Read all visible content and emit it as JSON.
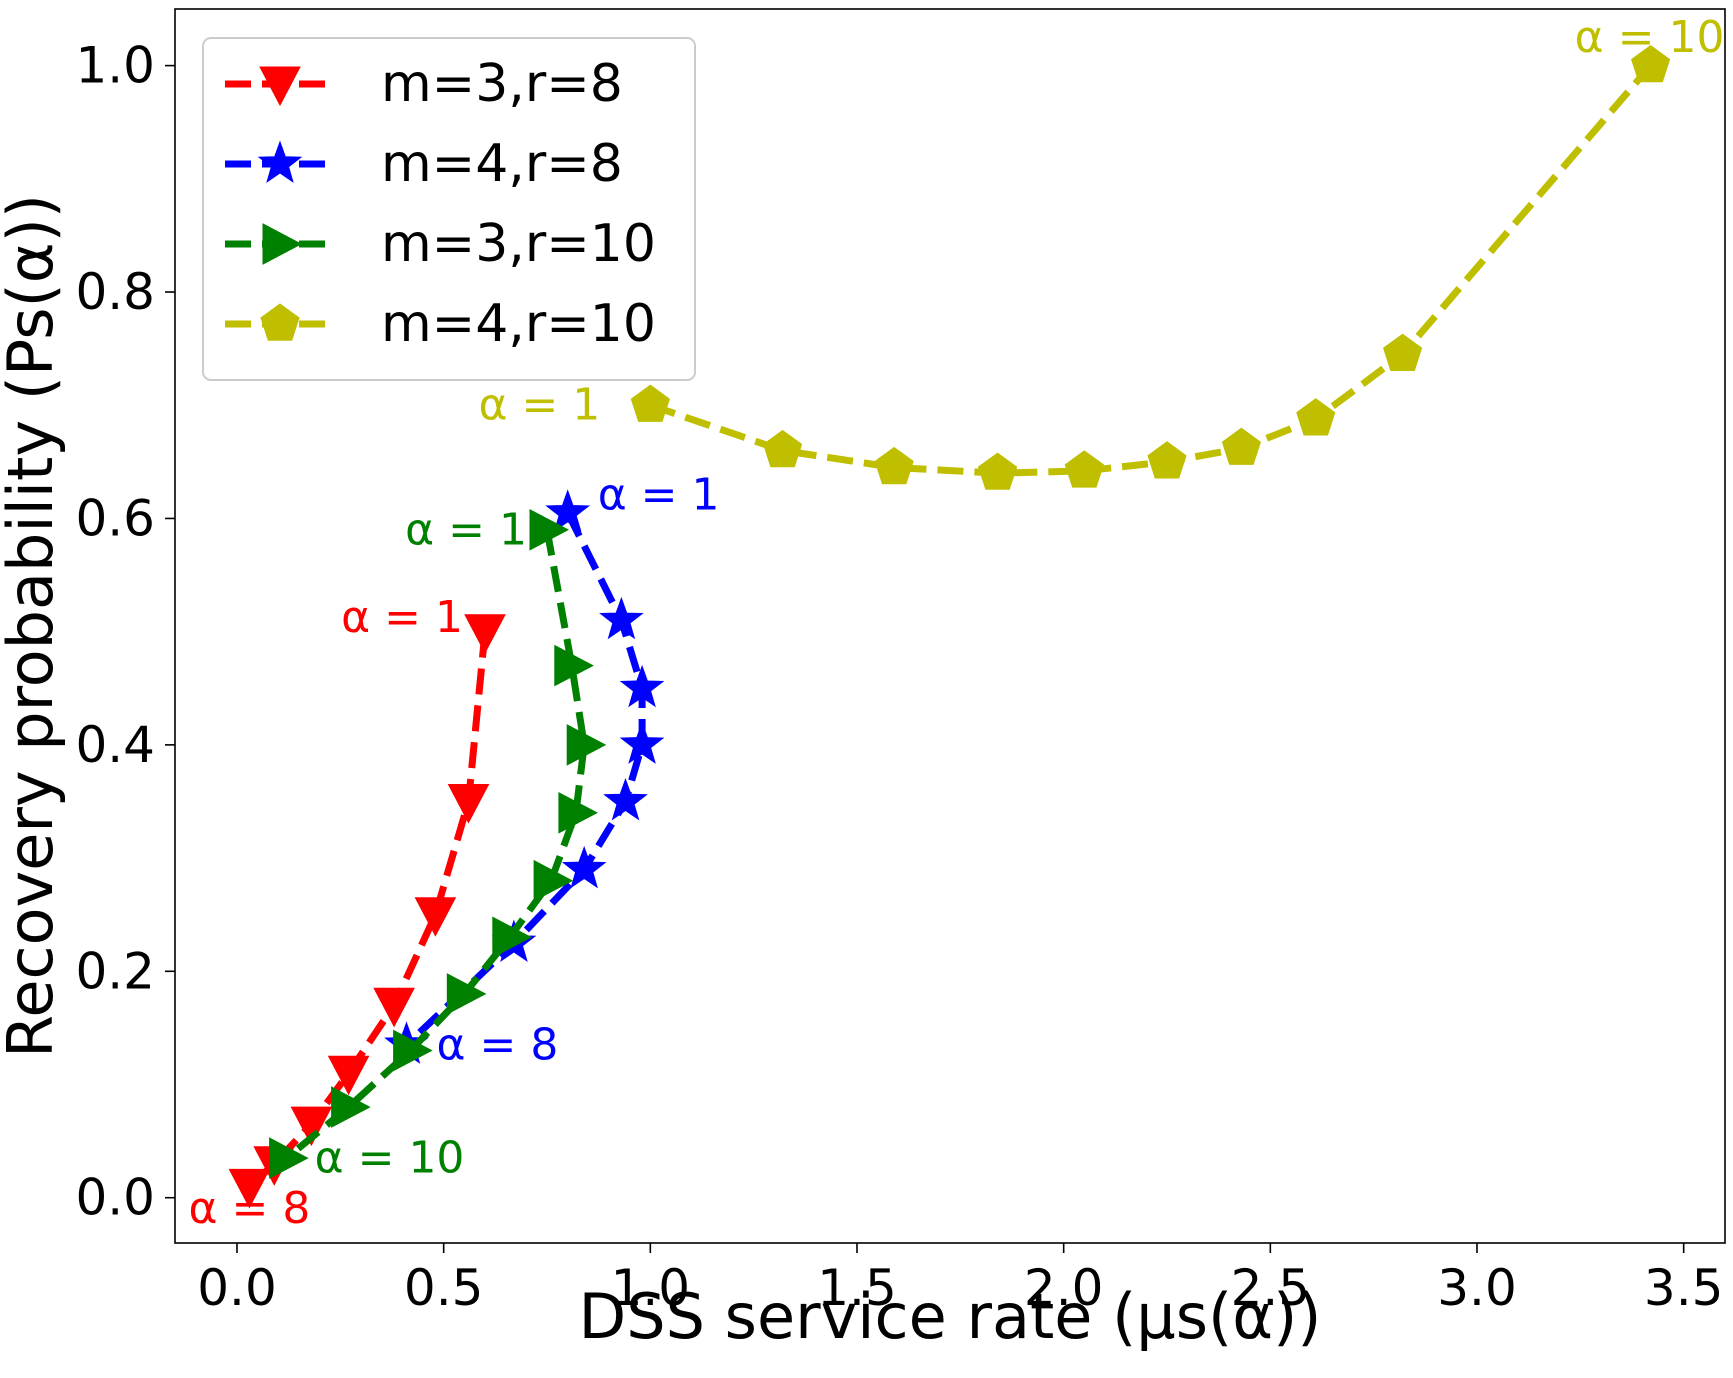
{
  "chart_data": {
    "type": "line",
    "title": "",
    "xlabel": "DSS service rate (μs(α))",
    "ylabel": "Recovery probability (Ps(α))",
    "xlim": [
      -0.15,
      3.6
    ],
    "ylim": [
      -0.04,
      1.05
    ],
    "xticks": [
      0.0,
      0.5,
      1.0,
      1.5,
      2.0,
      2.5,
      3.0,
      3.5
    ],
    "xtick_labels": [
      "0.0",
      "0.5",
      "1.0",
      "1.5",
      "2.0",
      "2.5",
      "3.0",
      "3.5"
    ],
    "yticks": [
      0.0,
      0.2,
      0.4,
      0.6,
      0.8,
      1.0
    ],
    "ytick_labels": [
      "0.0",
      "0.2",
      "0.4",
      "0.6",
      "0.8",
      "1.0"
    ],
    "grid": false,
    "legend_position": "top-left",
    "series": [
      {
        "name": "m=3,r=8",
        "color": "#ff0000",
        "marker": "triangle-down",
        "x": [
          0.6,
          0.56,
          0.48,
          0.38,
          0.27,
          0.18,
          0.09,
          0.03
        ],
        "y": [
          0.5,
          0.35,
          0.25,
          0.17,
          0.11,
          0.065,
          0.03,
          0.01
        ]
      },
      {
        "name": "m=4,r=8",
        "color": "#0000ff",
        "marker": "star",
        "x": [
          0.8,
          0.93,
          0.98,
          0.98,
          0.94,
          0.84,
          0.67,
          0.41
        ],
        "y": [
          0.605,
          0.51,
          0.45,
          0.4,
          0.35,
          0.29,
          0.225,
          0.135
        ]
      },
      {
        "name": "m=3,r=10",
        "color": "#008000",
        "marker": "triangle-right",
        "x": [
          0.75,
          0.81,
          0.84,
          0.82,
          0.76,
          0.66,
          0.55,
          0.42,
          0.27,
          0.12
        ],
        "y": [
          0.59,
          0.47,
          0.4,
          0.34,
          0.28,
          0.23,
          0.18,
          0.13,
          0.08,
          0.035
        ]
      },
      {
        "name": "m=4,r=10",
        "color": "#bfbf00",
        "marker": "pentagon",
        "x": [
          1.0,
          1.32,
          1.59,
          1.84,
          2.05,
          2.25,
          2.43,
          2.61,
          2.82,
          3.42
        ],
        "y": [
          0.7,
          0.66,
          0.645,
          0.64,
          0.642,
          0.65,
          0.662,
          0.688,
          0.745,
          1.0
        ]
      }
    ],
    "annotations": [
      {
        "text": "α = 10",
        "x": 3.42,
        "y": 1.0,
        "color": "#bfbf00"
      },
      {
        "text": "α = 1",
        "x": 1.0,
        "y": 0.7,
        "color": "#bfbf00"
      },
      {
        "text": "α = 1",
        "x": 0.8,
        "y": 0.605,
        "color": "#0000ff"
      },
      {
        "text": "α = 1",
        "x": 0.75,
        "y": 0.59,
        "color": "#008000"
      },
      {
        "text": "α = 1",
        "x": 0.6,
        "y": 0.5,
        "color": "#ff0000"
      },
      {
        "text": "α = 8",
        "x": 0.41,
        "y": 0.135,
        "color": "#0000ff"
      },
      {
        "text": "α = 10",
        "x": 0.12,
        "y": 0.035,
        "color": "#008000"
      },
      {
        "text": "α = 8",
        "x": 0.03,
        "y": 0.01,
        "color": "#ff0000"
      }
    ]
  }
}
